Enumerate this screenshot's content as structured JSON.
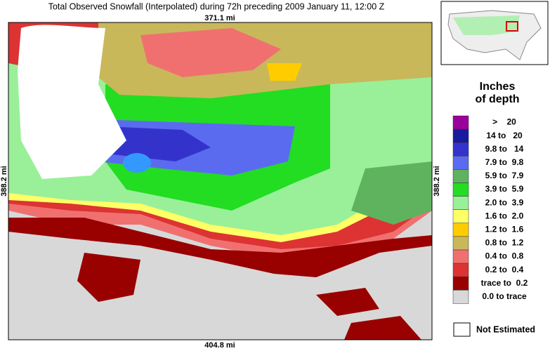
{
  "header": {
    "title": "Total Observed Snowfall (Interpolated) during 72h preceding 2009 January 11, 12:00 Z"
  },
  "map": {
    "top_label": "371.1 mi",
    "bottom_label": "404.8 mi",
    "left_label": "388.2 mi",
    "right_label": "388.2 mi"
  },
  "legend": {
    "title_line1": "Inches",
    "title_line2": "of depth",
    "entries": [
      {
        "label": ">    20",
        "color": "#9b009b"
      },
      {
        "label": "14 to   20",
        "color": "#1a1a9e"
      },
      {
        "label": "9.8 to   14",
        "color": "#3333cc"
      },
      {
        "label": "7.9 to  9.8",
        "color": "#5b6bf0"
      },
      {
        "label": "5.9 to  7.9",
        "color": "#5fb35f"
      },
      {
        "label": "3.9 to  5.9",
        "color": "#22dd22"
      },
      {
        "label": "2.0 to  3.9",
        "color": "#99f099"
      },
      {
        "label": "1.6 to  2.0",
        "color": "#ffff66"
      },
      {
        "label": "1.2 to  1.6",
        "color": "#ffcc00"
      },
      {
        "label": "0.8 to  1.2",
        "color": "#c8b85a"
      },
      {
        "label": "0.4 to  0.8",
        "color": "#f07070"
      },
      {
        "label": "0.2 to  0.4",
        "color": "#dd3333"
      },
      {
        "label": "trace to  0.2",
        "color": "#990000"
      },
      {
        "label": "0.0 to trace",
        "color": "#d8d8d8"
      }
    ],
    "not_estimated": "Not Estimated"
  }
}
